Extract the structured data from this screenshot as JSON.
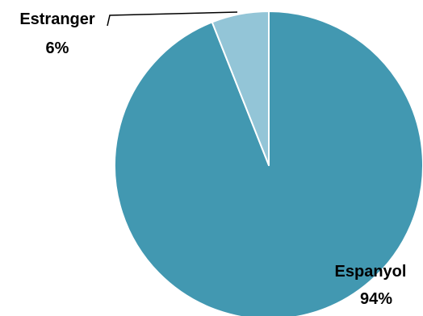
{
  "chart_data": {
    "type": "pie",
    "title": "",
    "slices": [
      {
        "label": "Espanyol",
        "value": 94,
        "value_label": "94%",
        "color": "#4298b1"
      },
      {
        "label": "Estranger",
        "value": 6,
        "value_label": "6%",
        "color": "#93c5d7"
      }
    ],
    "start_direction": "top",
    "slice_order": "clockwise",
    "legend": "none",
    "slice_border_color": "#ffffff",
    "leader_line_color": "#000000"
  }
}
